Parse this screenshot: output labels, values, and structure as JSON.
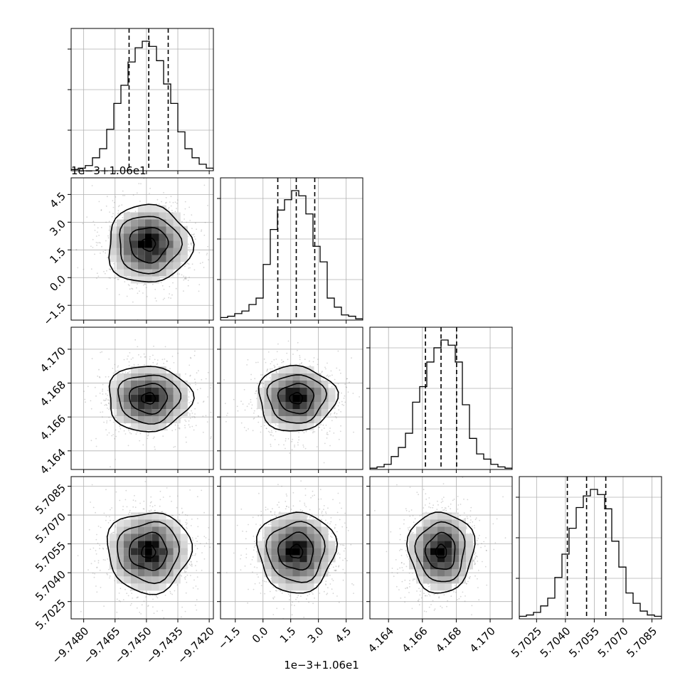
{
  "chart_data": {
    "type": "corner",
    "n_params": 4,
    "hist_bins": 20,
    "grid": true,
    "contour_levels": 3,
    "params": [
      {
        "range": [
          -9.7486,
          -9.7418
        ],
        "ticks": [
          -9.748,
          -9.7465,
          -9.745,
          -9.7435,
          -9.742
        ],
        "tick_labels": [
          "−9.7480",
          "−9.7465",
          "−9.7450",
          "−9.7435",
          "−9.7420"
        ],
        "mean": -9.7449,
        "sigma": 0.00095,
        "quantiles": [
          -9.74583,
          -9.74489,
          -9.74396
        ],
        "hist_values": [
          0.01,
          0.02,
          0.04,
          0.1,
          0.17,
          0.32,
          0.52,
          0.66,
          0.84,
          0.95,
          1.0,
          0.96,
          0.85,
          0.67,
          0.52,
          0.3,
          0.17,
          0.1,
          0.05,
          0.02
        ],
        "offset_label": ""
      },
      {
        "range": [
          -2.3,
          5.4
        ],
        "ticks": [
          -1.5,
          0.0,
          1.5,
          3.0,
          4.5
        ],
        "tick_labels": [
          "−1.5",
          "0.0",
          "1.5",
          "3.0",
          "4.5"
        ],
        "mean": 1.8,
        "sigma": 1.0,
        "quantiles": [
          0.8,
          1.8,
          2.8
        ],
        "hist_values": [
          0.02,
          0.03,
          0.05,
          0.07,
          0.12,
          0.17,
          0.43,
          0.7,
          0.85,
          0.93,
          1.0,
          0.96,
          0.82,
          0.57,
          0.45,
          0.17,
          0.1,
          0.04,
          0.03,
          0.01
        ],
        "offset_label": "1e−3+1.06e1"
      },
      {
        "range": [
          4.1629,
          4.1713
        ],
        "ticks": [
          4.164,
          4.166,
          4.168,
          4.17
        ],
        "tick_labels": [
          "4.164",
          "4.166",
          "4.168",
          "4.170"
        ],
        "mean": 4.1671,
        "sigma": 0.00092,
        "quantiles": [
          4.16618,
          4.1671,
          4.16802
        ],
        "hist_values": [
          0.01,
          0.02,
          0.04,
          0.1,
          0.17,
          0.28,
          0.52,
          0.64,
          0.83,
          0.94,
          1.0,
          0.96,
          0.83,
          0.5,
          0.24,
          0.12,
          0.08,
          0.04,
          0.02,
          0.01
        ],
        "offset_label": ""
      },
      {
        "range": [
          5.7016,
          5.709
        ],
        "ticks": [
          5.7025,
          5.704,
          5.7055,
          5.707,
          5.7085
        ],
        "tick_labels": [
          "5.7025",
          "5.7040",
          "5.7055",
          "5.7070",
          "5.7085"
        ],
        "mean": 5.7051,
        "sigma": 0.001,
        "quantiles": [
          5.7041,
          5.7051,
          5.7061
        ],
        "hist_values": [
          0.02,
          0.03,
          0.05,
          0.1,
          0.16,
          0.32,
          0.5,
          0.7,
          0.86,
          0.95,
          1.0,
          0.96,
          0.85,
          0.6,
          0.4,
          0.2,
          0.12,
          0.06,
          0.03,
          0.02
        ],
        "offset_label": ""
      }
    ]
  },
  "offsets": {
    "row1_y": "1e−3+1.06e1",
    "col1_x": "1e−3+1.06e1"
  }
}
